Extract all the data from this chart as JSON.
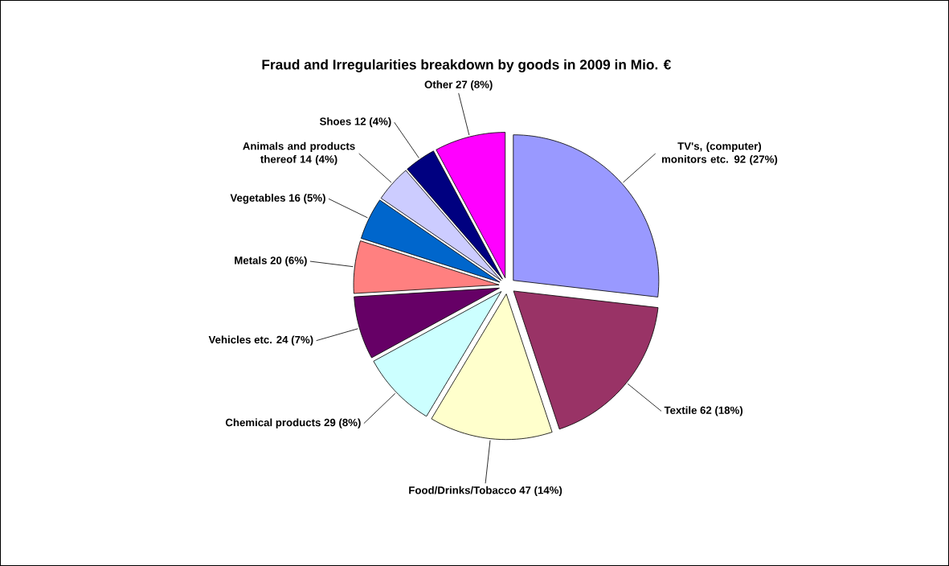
{
  "chart_data": {
    "type": "pie",
    "title": "Fraud and Irregularities breakdown by goods in 2009 in Mio. €",
    "categories": [
      "TV's, (computer) monitors etc.",
      "Textile",
      "Food/Drinks/Tobacco",
      "Chemical products",
      "Vehicles etc.",
      "Metals",
      "Vegetables",
      "Animals and products thereof",
      "Shoes",
      "Other"
    ],
    "values": [
      92,
      62,
      47,
      29,
      24,
      20,
      16,
      14,
      12,
      27
    ],
    "colors": [
      "#9999ff",
      "#993366",
      "#ffffcc",
      "#ccffff",
      "#660066",
      "#ff8080",
      "#0066cc",
      "#ccccff",
      "#000080",
      "#ff00ff"
    ],
    "value_labels": [
      "92 (27%)",
      "62 (18%)",
      "47 (14%)",
      "29 (8%)",
      "24 (7%)",
      "20 (6%)",
      "16 (5%)",
      "14 (4%)",
      "12 (4%)",
      "27 (8%)"
    ]
  }
}
